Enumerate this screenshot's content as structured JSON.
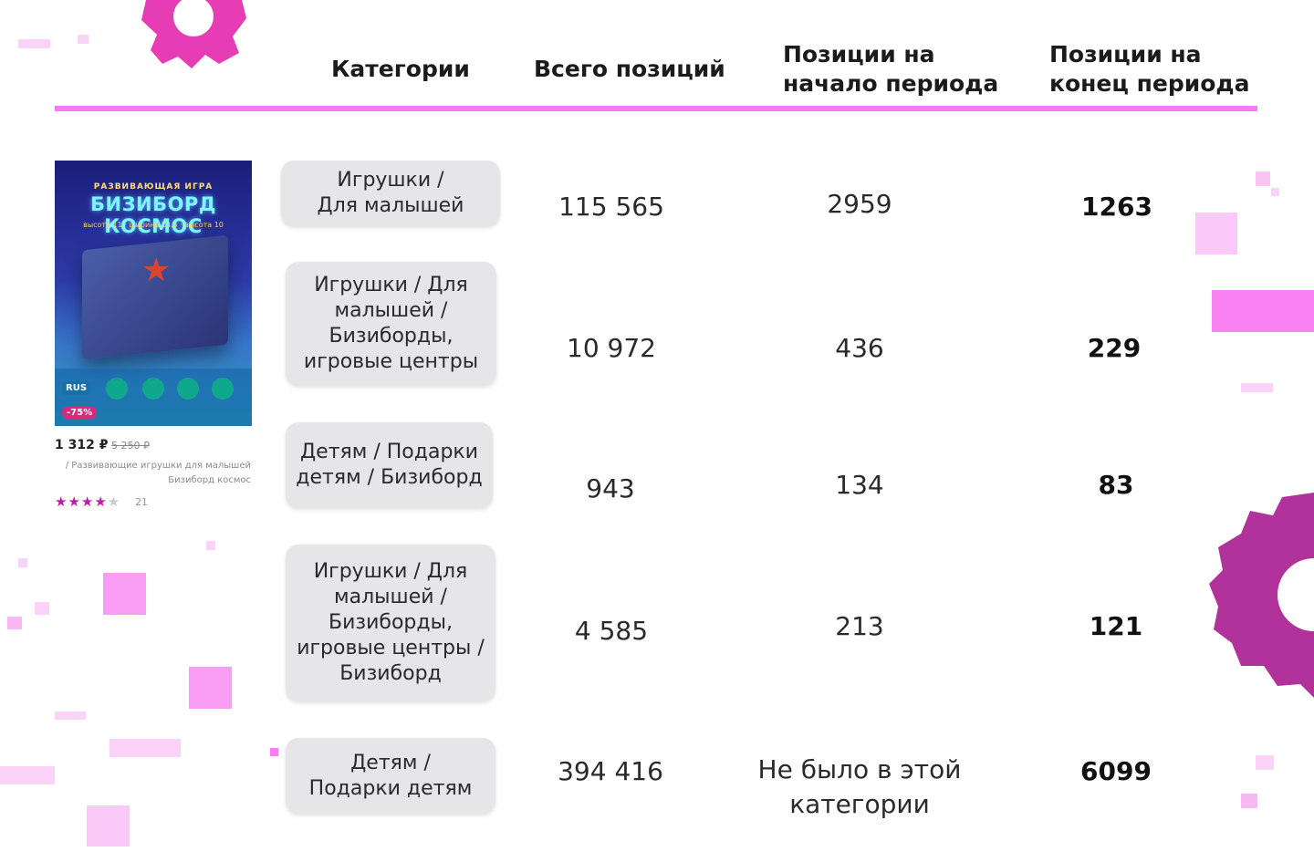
{
  "table": {
    "headers": [
      "Категории",
      "Всего позиций",
      "Позиции на\nначало периода",
      "Позиции на\nконец периода"
    ],
    "rows": [
      {
        "category": "Игрушки /\nДля малышей",
        "total": "115 565",
        "start": "2959",
        "end": "1263"
      },
      {
        "category": "Игрушки / Для\nмалышей /\nБизиборды,\nигровые центры",
        "total": "10 972",
        "start": "436",
        "end": "229"
      },
      {
        "category": "Детям / Подарки\nдетям / Бизиборд",
        "total": "943",
        "start": "134",
        "end": "83"
      },
      {
        "category": "Игрушки / Для\nмалышей /\nБизиборды,\nигровые центры /\nБизиборд",
        "total": "4 585",
        "start": "213",
        "end": "121"
      },
      {
        "category": "Детям /\nПодарки детям",
        "total": "394 416",
        "start": "Не было в этой\nкатегории",
        "end": "6099"
      }
    ]
  },
  "product_card": {
    "image_subtitle": "РАЗВИВАЮЩАЯ ИГРА",
    "image_title": "БИЗИБОРД КОСМОС",
    "image_dims": "высота 11 · ширина 14.5 · высота 10",
    "image_lang": "RUS",
    "image_discount": "-75%",
    "price": "1 312 ₽",
    "old_price": "5 250 ₽",
    "description": "/ Развивающие игрушки для малышей Бизиборд космос",
    "stars_filled": "★★★★",
    "stars_empty": "★",
    "rating_count": "21"
  },
  "colors": {
    "accent": "#f57bf1",
    "gear_top": "#e63cb4",
    "gear_right": "#b0329a",
    "pill_bg": "#e6e5e8"
  }
}
